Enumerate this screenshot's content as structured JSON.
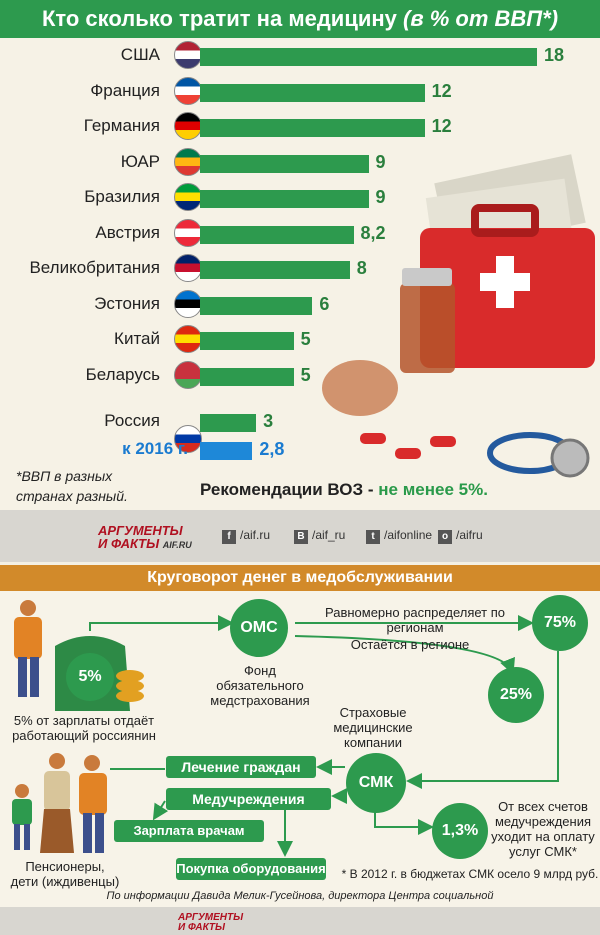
{
  "header": {
    "title": "Кто сколько тратит на медицину",
    "title_note": "(в % от ВВП*)"
  },
  "chart_data": {
    "type": "bar",
    "title": "Кто сколько тратит на медицину (в % от ВВП*)",
    "categories": [
      "США",
      "Франция",
      "Германия",
      "ЮАР",
      "Бразилия",
      "Австрия",
      "Великобритания",
      "Эстония",
      "Китай",
      "Беларусь",
      "Россия",
      "к 2016 г."
    ],
    "values": [
      18,
      12,
      12,
      9,
      9,
      8.2,
      8,
      6,
      5,
      5,
      3,
      2.8
    ],
    "value_labels": [
      "18",
      "12",
      "12",
      "9",
      "9",
      "8,2",
      "8",
      "6",
      "5",
      "5",
      "3",
      "2,8"
    ],
    "colors": {
      "bar": "#2d9a4e",
      "forecast": "#1e88d8",
      "forecast_text": "#1a7bd0"
    },
    "xlim": [
      0,
      18
    ]
  },
  "footnote": "*ВВП в разных странах разный.",
  "who": {
    "text": "Рекомендации ВОЗ - ",
    "value": "не менее 5%."
  },
  "social": {
    "logo_top": "АРГУМЕНТЫ",
    "logo_bottom": "И ФАКТЫ",
    "logo_domain": "AIF.RU",
    "links": [
      {
        "icon": "facebook-icon",
        "glyph": "f",
        "text": "/aif.ru"
      },
      {
        "icon": "vk-icon",
        "glyph": "В",
        "text": "/aif_ru"
      },
      {
        "icon": "twitter-icon",
        "glyph": "t",
        "text": "/aifonline"
      },
      {
        "icon": "odnoklassniki-icon",
        "glyph": "о",
        "text": "/aifru"
      }
    ]
  },
  "flow": {
    "title": "Круговорот денег в медобслуживании",
    "oms": "ОМС",
    "oms_desc": "Фонд обязательного медстрахования",
    "distribute": "Равномерно распределяет по регионам",
    "stays": "Остаётся в регионе",
    "p75": "75%",
    "p25": "25%",
    "p5": "5%",
    "p13": "1,3%",
    "smk": "СМК",
    "smk_desc": "Страховые медицинские компании",
    "worker_desc": "5% от зарплаты отдаёт работающий россиянин",
    "dependants": "Пенсионеры, дети (иждивенцы)",
    "treatment": "Лечение граждан",
    "institutions": "Медучреждения",
    "salary": "Зарплата врачам",
    "equipment": "Покупка оборудования",
    "smk_note": "От всех счетов медучреждения уходит на оплату услуг СМК*",
    "footnote": "* В 2012 г. в бюджетах СМК осело 9 млрд руб.",
    "source": "По информации Давида Мелик-Гусейнова, директора Центра социальной экономики"
  }
}
